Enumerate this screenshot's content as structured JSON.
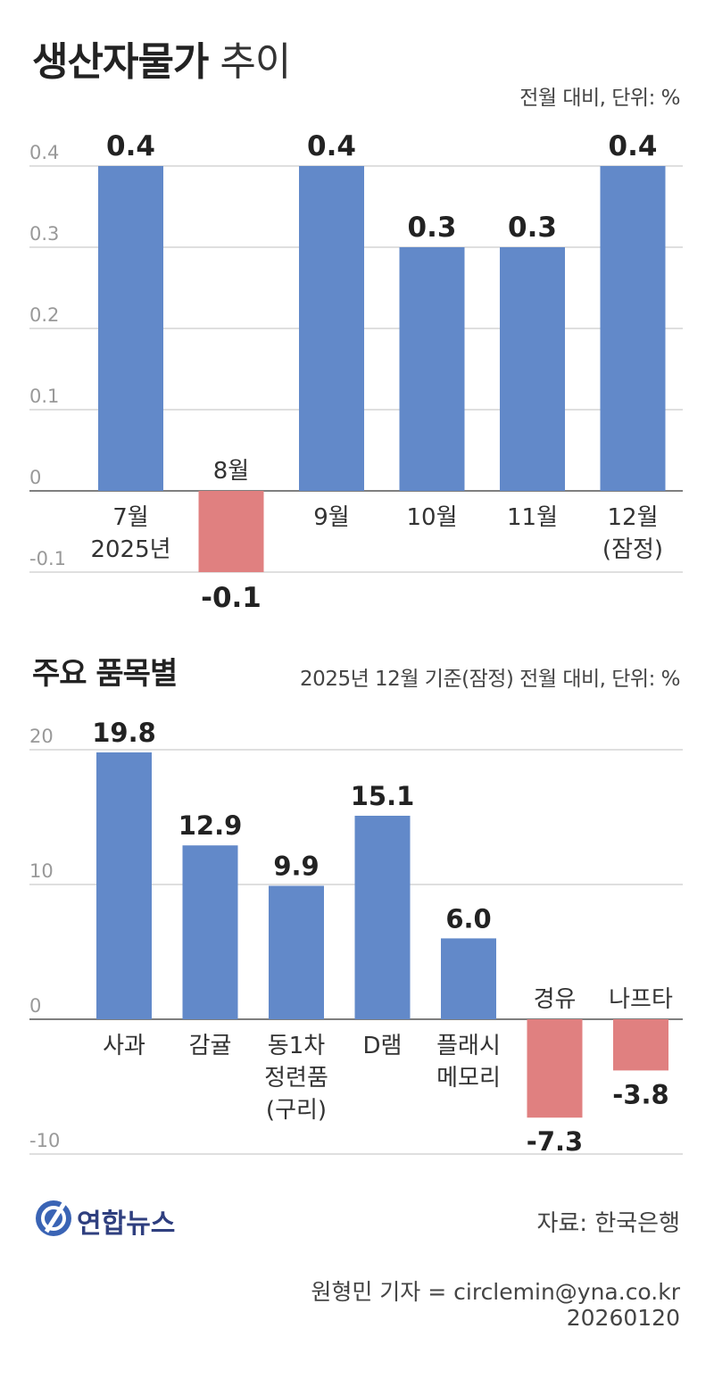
{
  "title": {
    "bold": "생산자물가",
    "normal": "추이"
  },
  "chart1_unit": "전월 대비, 단위: %",
  "section2_title": "주요 품목별",
  "chart2_unit": "2025년 12월 기준(잠정) 전월 대비, 단위: %",
  "colors": {
    "positive": "#6289c9",
    "negative": "#e08080",
    "grid": "#cccccc",
    "axis": "#555555"
  },
  "chart_data": [
    {
      "type": "bar",
      "title": "생산자물가 추이",
      "ylim": [
        -0.1,
        0.4
      ],
      "yticks": [
        "0.4",
        "0.3",
        "0.2",
        "0.1",
        "0",
        "-0.1"
      ],
      "ytick_values": [
        0.4,
        0.3,
        0.2,
        0.1,
        0,
        -0.1
      ],
      "categories": [
        [
          "7월",
          "2025년"
        ],
        [
          "8월"
        ],
        [
          "9월"
        ],
        [
          "10월"
        ],
        [
          "11월"
        ],
        [
          "12월",
          "(잠정)"
        ]
      ],
      "values": [
        0.4,
        -0.1,
        0.4,
        0.3,
        0.3,
        0.4
      ],
      "value_labels": [
        "0.4",
        "-0.1",
        "0.4",
        "0.3",
        "0.3",
        "0.4"
      ],
      "grid": true
    },
    {
      "type": "bar",
      "title": "주요 품목별",
      "ylim": [
        -10,
        20
      ],
      "yticks": [
        "20",
        "10",
        "0",
        "-10"
      ],
      "ytick_values": [
        20,
        10,
        0,
        -10
      ],
      "categories": [
        [
          "사과"
        ],
        [
          "감귤"
        ],
        [
          "동1차",
          "정련품",
          "(구리)"
        ],
        [
          "D램"
        ],
        [
          "플래시",
          "메모리"
        ],
        [
          "경유"
        ],
        [
          "나프타"
        ]
      ],
      "values": [
        19.8,
        12.9,
        9.9,
        15.1,
        6.0,
        -7.3,
        -3.8
      ],
      "value_labels": [
        "19.8",
        "12.9",
        "9.9",
        "15.1",
        "6.0",
        "-7.3",
        "-3.8"
      ],
      "grid": true
    }
  ],
  "logo_text": "연합뉴스",
  "source": "자료: 한국은행",
  "credit": "원형민 기자 = circlemin@yna.co.kr",
  "date": "20260120"
}
